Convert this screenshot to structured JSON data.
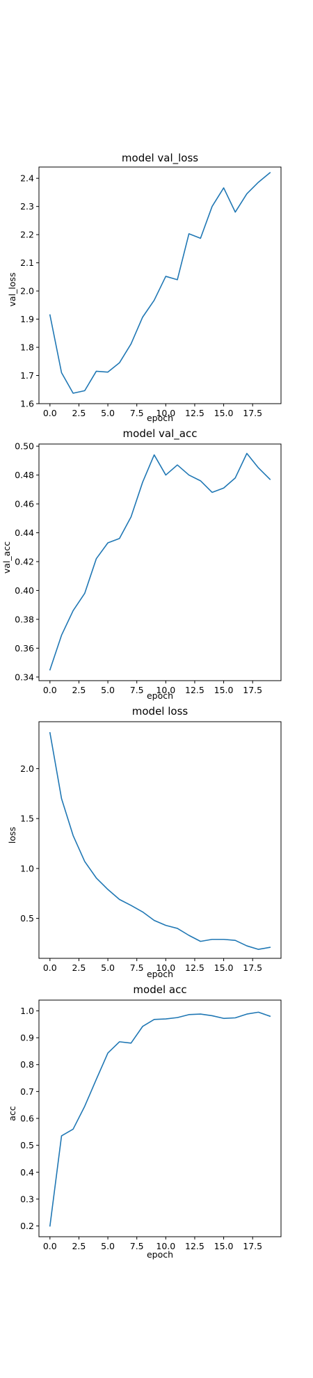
{
  "chart_data": [
    {
      "type": "line",
      "title": "model val_loss",
      "xlabel": "epoch",
      "ylabel": "val_loss",
      "xlim": [
        -0.95,
        19.95
      ],
      "ylim": [
        1.6,
        2.44
      ],
      "xticks": [
        0,
        2.5,
        5,
        7.5,
        10,
        12.5,
        15,
        17.5
      ],
      "xtick_labels": [
        "0.0",
        "2.5",
        "5.0",
        "7.5",
        "10.0",
        "12.5",
        "15.0",
        "17.5"
      ],
      "yticks": [
        1.6,
        1.7,
        1.8,
        1.9,
        2.0,
        2.1,
        2.2,
        2.3,
        2.4
      ],
      "ytick_labels": [
        "1.6",
        "1.7",
        "1.8",
        "1.9",
        "2.0",
        "2.1",
        "2.2",
        "2.3",
        "2.4"
      ],
      "grid": false,
      "color": "#1f77b4",
      "series": [
        {
          "x": [
            0,
            1,
            2,
            3,
            4,
            5,
            6,
            7,
            8,
            9,
            10,
            11,
            12,
            13,
            14,
            15,
            16,
            17,
            18,
            19
          ],
          "values": [
            1.915,
            1.71,
            1.637,
            1.646,
            1.715,
            1.712,
            1.745,
            1.812,
            1.907,
            1.967,
            2.052,
            2.04,
            2.203,
            2.187,
            2.3,
            2.366,
            2.28,
            2.345,
            2.386,
            2.42
          ]
        }
      ]
    },
    {
      "type": "line",
      "title": "model val_acc",
      "xlabel": "epoch",
      "ylabel": "val_acc",
      "xlim": [
        -0.95,
        19.95
      ],
      "ylim": [
        0.3375,
        0.5015
      ],
      "xticks": [
        0,
        2.5,
        5,
        7.5,
        10,
        12.5,
        15,
        17.5
      ],
      "xtick_labels": [
        "0.0",
        "2.5",
        "5.0",
        "7.5",
        "10.0",
        "12.5",
        "15.0",
        "17.5"
      ],
      "yticks": [
        0.34,
        0.36,
        0.38,
        0.4,
        0.42,
        0.44,
        0.46,
        0.48,
        0.5
      ],
      "ytick_labels": [
        "0.34",
        "0.36",
        "0.38",
        "0.40",
        "0.42",
        "0.44",
        "0.46",
        "0.48",
        "0.50"
      ],
      "grid": false,
      "color": "#1f77b4",
      "series": [
        {
          "x": [
            0,
            1,
            2,
            3,
            4,
            5,
            6,
            7,
            8,
            9,
            10,
            11,
            12,
            13,
            14,
            15,
            16,
            17,
            18,
            19
          ],
          "values": [
            0.345,
            0.369,
            0.386,
            0.398,
            0.422,
            0.433,
            0.436,
            0.451,
            0.475,
            0.494,
            0.48,
            0.487,
            0.48,
            0.476,
            0.468,
            0.471,
            0.478,
            0.495,
            0.485,
            0.477
          ]
        }
      ]
    },
    {
      "type": "line",
      "title": "model loss",
      "xlabel": "epoch",
      "ylabel": "loss",
      "xlim": [
        -0.95,
        19.95
      ],
      "ylim": [
        0.1,
        2.47
      ],
      "xticks": [
        0,
        2.5,
        5,
        7.5,
        10,
        12.5,
        15,
        17.5
      ],
      "xtick_labels": [
        "0.0",
        "2.5",
        "5.0",
        "7.5",
        "10.0",
        "12.5",
        "15.0",
        "17.5"
      ],
      "yticks": [
        0.5,
        1.0,
        1.5,
        2.0
      ],
      "ytick_labels": [
        "0.5",
        "1.0",
        "1.5",
        "2.0"
      ],
      "grid": false,
      "color": "#1f77b4",
      "series": [
        {
          "x": [
            0,
            1,
            2,
            3,
            4,
            5,
            6,
            7,
            8,
            9,
            10,
            11,
            12,
            13,
            14,
            15,
            16,
            17,
            18,
            19
          ],
          "values": [
            2.36,
            1.7,
            1.33,
            1.07,
            0.905,
            0.79,
            0.69,
            0.63,
            0.565,
            0.48,
            0.43,
            0.4,
            0.33,
            0.27,
            0.29,
            0.29,
            0.28,
            0.225,
            0.19,
            0.21
          ]
        }
      ]
    },
    {
      "type": "line",
      "title": "model acc",
      "xlabel": "epoch",
      "ylabel": "acc",
      "xlim": [
        -0.95,
        19.95
      ],
      "ylim": [
        0.16,
        1.04
      ],
      "xticks": [
        0,
        2.5,
        5,
        7.5,
        10,
        12.5,
        15,
        17.5
      ],
      "xtick_labels": [
        "0.0",
        "2.5",
        "5.0",
        "7.5",
        "10.0",
        "12.5",
        "15.0",
        "17.5"
      ],
      "yticks": [
        0.2,
        0.3,
        0.4,
        0.5,
        0.6,
        0.7,
        0.8,
        0.9,
        1.0
      ],
      "ytick_labels": [
        "0.2",
        "0.3",
        "0.4",
        "0.5",
        "0.6",
        "0.7",
        "0.8",
        "0.9",
        "1.0"
      ],
      "grid": false,
      "color": "#1f77b4",
      "series": [
        {
          "x": [
            0,
            1,
            2,
            3,
            4,
            5,
            6,
            7,
            8,
            9,
            10,
            11,
            12,
            13,
            14,
            15,
            16,
            17,
            18,
            19
          ],
          "values": [
            0.2,
            0.535,
            0.56,
            0.645,
            0.745,
            0.843,
            0.885,
            0.88,
            0.942,
            0.968,
            0.97,
            0.975,
            0.986,
            0.988,
            0.982,
            0.972,
            0.974,
            0.988,
            0.995,
            0.98
          ]
        }
      ]
    }
  ]
}
